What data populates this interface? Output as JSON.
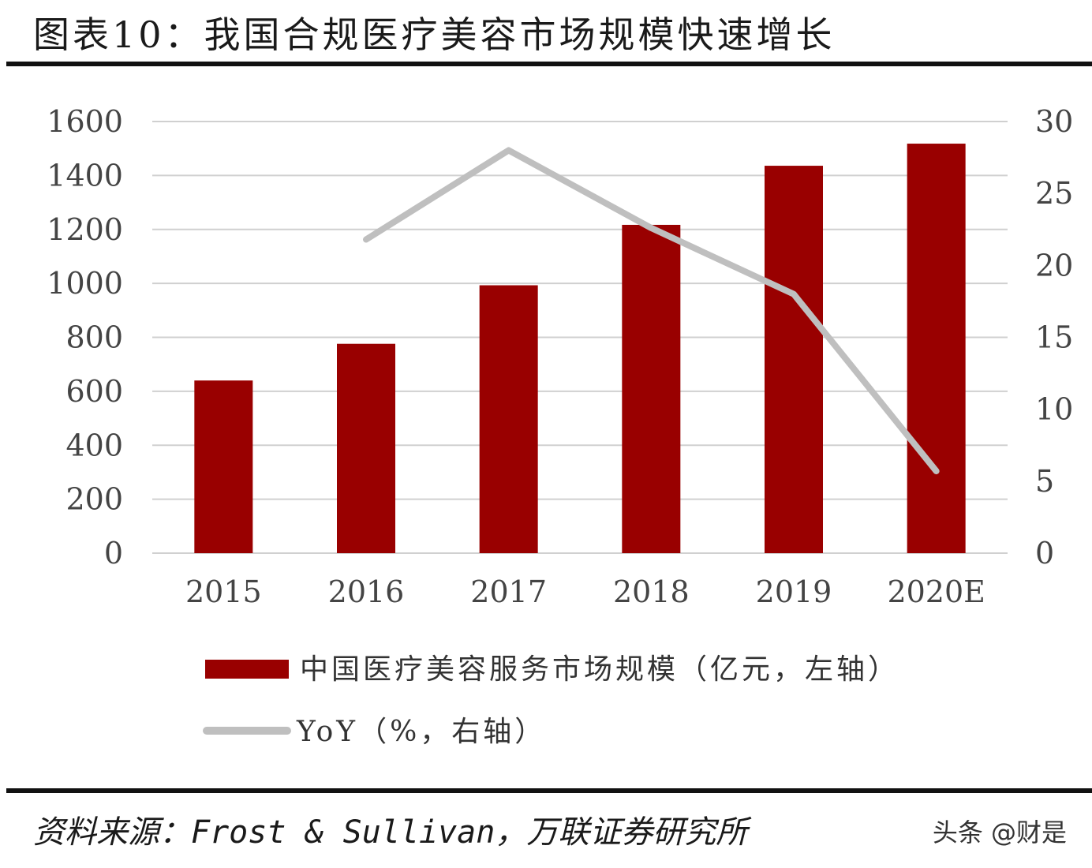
{
  "figure": {
    "title": "图表10：我国合规医疗美容市场规模快速增长",
    "source": "资料来源：Frost & Sullivan，万联证券研究所",
    "watermark": "头条 @财是"
  },
  "colors": {
    "bar": "#990000",
    "line": "#bfbfbf",
    "grid": "#d0d0d0",
    "axis_text": "#444444"
  },
  "chart_data": {
    "type": "bar",
    "categories": [
      "2015",
      "2016",
      "2017",
      "2018",
      "2019",
      "2020E"
    ],
    "series": [
      {
        "name": "中国医疗美容服务市场规模（亿元，左轴）",
        "type": "bar",
        "axis": "left",
        "values": [
          640,
          776,
          993,
          1217,
          1436,
          1518
        ]
      },
      {
        "name": "YoY（%，右轴）",
        "type": "line",
        "axis": "right",
        "values": [
          null,
          21.8,
          28.0,
          22.6,
          18.0,
          5.7
        ]
      }
    ],
    "y_left": {
      "min": 0,
      "max": 1600,
      "ticks": [
        "0",
        "200",
        "400",
        "600",
        "800",
        "1000",
        "1200",
        "1400",
        "1600"
      ]
    },
    "y_right": {
      "min": 0,
      "max": 30,
      "ticks": [
        "0",
        "5",
        "10",
        "15",
        "20",
        "25",
        "30"
      ]
    },
    "grid": true,
    "legend_position": "bottom"
  }
}
